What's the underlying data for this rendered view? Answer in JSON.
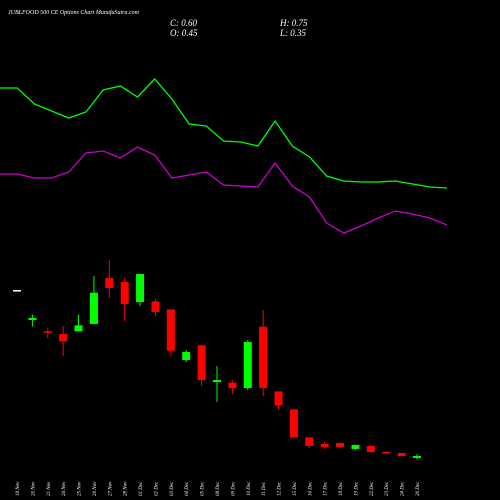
{
  "chart_data": {
    "type": "candlestick",
    "title": "JUBLFOOD 500 CE Options Chart MunafaSutra.com",
    "stats": [
      "C: 0.60",
      "H: 0.75",
      "O: 0.45",
      "L: 0.35"
    ],
    "x": [
      "18 Nov",
      "20 Nov",
      "21 Nov",
      "24 Nov",
      "25 Nov",
      "26 Nov",
      "27 Nov",
      "28 Nov",
      "01 Dec",
      "02 Dec",
      "03 Dec",
      "04 Dec",
      "05 Dec",
      "08 Dec",
      "09 Dec",
      "10 Dec",
      "11 Dec",
      "12 Dec",
      "15 Dec",
      "16 Dec",
      "17 Dec",
      "18 Dec",
      "19 Dec",
      "22 Dec",
      "23 Dec",
      "24 Dec",
      "26 Dec"
    ],
    "open": [
      13.05,
      10.8,
      9.95,
      9.75,
      9.95,
      10.5,
      13.95,
      13.65,
      12.15,
      12.2,
      11.6,
      7.8,
      8.9,
      6.15,
      6.1,
      5.7,
      10.3,
      5.45,
      4.1,
      2.0,
      1.5,
      1.58,
      1.13,
      1.35,
      0.9,
      0.83,
      0.45
    ],
    "high": [
      13.05,
      11.2,
      10.2,
      10.35,
      11.2,
      14.1,
      15.3,
      14.0,
      14.25,
      12.4,
      11.6,
      8.55,
      8.9,
      7.35,
      6.3,
      9.3,
      11.55,
      5.45,
      4.1,
      2.0,
      1.65,
      1.58,
      1.43,
      1.43,
      0.95,
      0.83,
      0.75
    ],
    "low": [
      13.05,
      10.3,
      9.45,
      8.1,
      9.95,
      10.5,
      12.45,
      10.7,
      11.85,
      11.1,
      8.1,
      7.65,
      5.85,
      4.65,
      5.25,
      5.55,
      5.1,
      4.05,
      1.95,
      1.2,
      1.13,
      1.2,
      1.05,
      0.83,
      0.8,
      0.55,
      0.35
    ],
    "close": [
      13.05,
      10.95,
      9.9,
      9.2,
      10.4,
      12.85,
      13.2,
      12.0,
      14.25,
      11.4,
      8.5,
      8.4,
      6.3,
      6.3,
      5.7,
      9.15,
      5.7,
      4.4,
      2.0,
      1.35,
      1.28,
      1.28,
      1.43,
      0.9,
      0.85,
      0.6,
      0.6
    ],
    "up_color": "#00ff00",
    "down_color": "#ff0000",
    "flat_color": "#ffffff",
    "ylim": [
      0,
      16
    ],
    "y2lim": [
      0,
      260
    ],
    "series": [
      {
        "color": "#00ff00",
        "axis": "y2",
        "values": [
          172,
          172,
          156,
          149,
          142,
          148,
          170,
          174,
          163,
          181,
          161,
          136,
          134,
          119,
          118,
          114,
          139,
          114,
          103,
          84,
          79,
          78,
          78,
          79,
          76,
          73,
          72
        ]
      },
      {
        "color": "#cc00cc",
        "axis": "y2",
        "values": [
          86,
          86,
          82,
          82,
          88,
          107,
          109,
          102,
          113,
          105,
          82,
          85,
          88,
          75,
          74,
          73,
          97,
          74,
          63,
          37,
          27,
          34,
          42,
          49,
          46,
          42,
          35
        ]
      }
    ]
  }
}
